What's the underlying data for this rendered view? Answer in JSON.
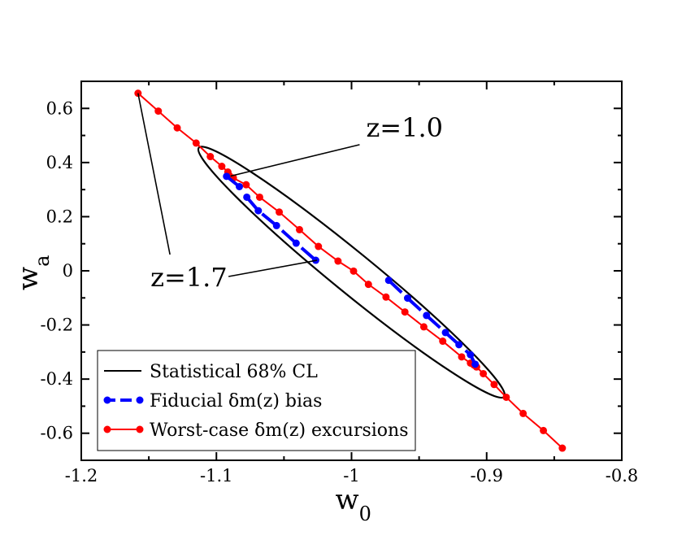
{
  "chart_data": {
    "type": "line",
    "xlabel": "w",
    "xlabel_sub": "0",
    "ylabel": "w",
    "ylabel_sub": "a",
    "xlim": [
      -1.2,
      -0.8
    ],
    "ylim": [
      -0.7,
      0.7
    ],
    "xticks": [
      -1.2,
      -1.1,
      -1.0,
      -0.9,
      -0.8
    ],
    "xtick_labels": [
      "-1.2",
      "-1.1",
      "-1",
      "-0.9",
      "-0.8"
    ],
    "yticks": [
      -0.6,
      -0.4,
      -0.2,
      0,
      0.2,
      0.4,
      0.6
    ],
    "ytick_labels": [
      "-0.6",
      "-0.4",
      "-0.2",
      "0",
      "0.2",
      "0.4",
      "0.6"
    ],
    "ellipse": {
      "name": "Statistical 68% CL",
      "color": "#000000",
      "center": [
        -1.0,
        -0.005
      ],
      "major_end": [
        -1.113,
        0.455
      ],
      "semi_minor_data_x": 0.012
    },
    "series": [
      {
        "name": "Worst-case δm(z) excursions",
        "color": "#ff0000",
        "style": "solid",
        "segments": [
          {
            "x": [
              -1.158,
              -1.143,
              -1.129,
              -1.115,
              -1.1045,
              -1.096,
              -1.0915,
              -1.0905,
              -1.0875
            ],
            "y": [
              0.656,
              0.59,
              0.528,
              0.472,
              0.422,
              0.386,
              0.365,
              0.352,
              0.343
            ]
          },
          {
            "x": [
              -1.0875,
              -1.078,
              -1.068,
              -1.0535,
              -1.0385,
              -1.0245,
              -1.01,
              -0.9985,
              -0.9875,
              -0.9745,
              -0.9605,
              -0.9465,
              -0.9325,
              -0.9185,
              -0.912,
              -0.9095,
              -0.9075
            ],
            "y": [
              0.343,
              0.318,
              0.272,
              0.217,
              0.152,
              0.09,
              0.036,
              -0.001,
              -0.05,
              -0.097,
              -0.152,
              -0.207,
              -0.26,
              -0.318,
              -0.341,
              -0.348,
              -0.355
            ]
          },
          {
            "x": [
              -0.9075,
              -0.9025,
              -0.8945,
              -0.8855,
              -0.873,
              -0.858,
              -0.844
            ],
            "y": [
              -0.355,
              -0.38,
              -0.42,
              -0.467,
              -0.527,
              -0.59,
              -0.655
            ]
          }
        ]
      },
      {
        "name": "Fiducial δm(z) bias",
        "color": "#0000ff",
        "style": "dashed",
        "segments": [
          {
            "x": [
              -1.0925,
              -1.083,
              -1.0775,
              -1.069,
              -1.0555,
              -1.041,
              -1.0265
            ],
            "y": [
              0.349,
              0.311,
              0.272,
              0.222,
              0.167,
              0.102,
              0.039
            ]
          },
          {
            "x": [
              -0.9725,
              -0.9585,
              -0.9445,
              -0.9305,
              -0.9205,
              -0.912,
              -0.9085
            ],
            "y": [
              -0.035,
              -0.101,
              -0.165,
              -0.228,
              -0.273,
              -0.31,
              -0.345
            ]
          }
        ]
      }
    ],
    "annotations": [
      {
        "text": "z=1.0",
        "anchor": [
          -0.988,
          0.46
        ],
        "pointers": [
          [
            -1.0895,
            0.35
          ]
        ]
      },
      {
        "text": "z=1.7",
        "anchor": [
          -1.15,
          0.0
        ],
        "pointers": [
          [
            -1.158,
            0.656
          ],
          [
            -1.0255,
            0.039
          ]
        ]
      }
    ],
    "legend": {
      "position": "bottom-left",
      "entries": [
        {
          "label": "Statistical 68% CL",
          "color": "#000000",
          "style": "solid",
          "marker": "none"
        },
        {
          "label": "Fiducial δm(z) bias",
          "color": "#0000ff",
          "style": "dashed",
          "marker": "circle"
        },
        {
          "label": "Worst-case δm(z) excursions",
          "color": "#ff0000",
          "style": "solid",
          "marker": "circle"
        }
      ]
    }
  }
}
